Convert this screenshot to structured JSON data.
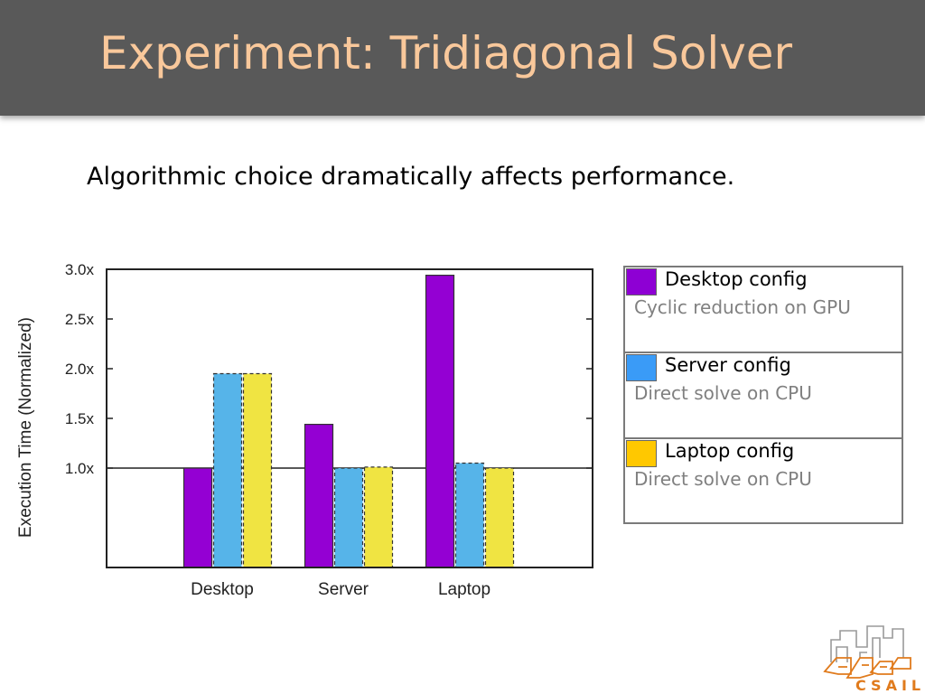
{
  "slide": {
    "title": "Experiment: Tridiagonal Solver",
    "subtitle": "Algorithmic choice dramatically affects performance.",
    "logo_text": "CSAIL"
  },
  "legend": {
    "items": [
      {
        "name": "Desktop config",
        "description": "Cyclic reduction on GPU",
        "color": "#8e00d4"
      },
      {
        "name": "Server config",
        "description": "Direct solve on CPU",
        "color": "#3a9bf7"
      },
      {
        "name": "Laptop config",
        "description": "Direct solve on CPU",
        "color": "#ffc800"
      }
    ]
  },
  "chart_data": {
    "type": "bar",
    "categories": [
      "Desktop",
      "Server",
      "Laptop"
    ],
    "ylabel": "Execution Time (Normalized)",
    "ylim": [
      0,
      3.0
    ],
    "ytick_labels": [
      "1.0x",
      "1.5x",
      "2.0x",
      "2.5x",
      "3.0x"
    ],
    "yticks": [
      1.0,
      1.5,
      2.0,
      2.5,
      3.0
    ],
    "reference_line": 1.0,
    "series": [
      {
        "name": "Desktop config",
        "values": [
          1.0,
          1.44,
          2.94
        ],
        "color": "#9400d3",
        "dashed": false
      },
      {
        "name": "Server config",
        "values": [
          1.95,
          1.0,
          1.05
        ],
        "color": "#56b4e9",
        "dashed": true
      },
      {
        "name": "Laptop config",
        "values": [
          1.95,
          1.01,
          1.0
        ],
        "color": "#f0e442",
        "dashed": true
      }
    ]
  }
}
